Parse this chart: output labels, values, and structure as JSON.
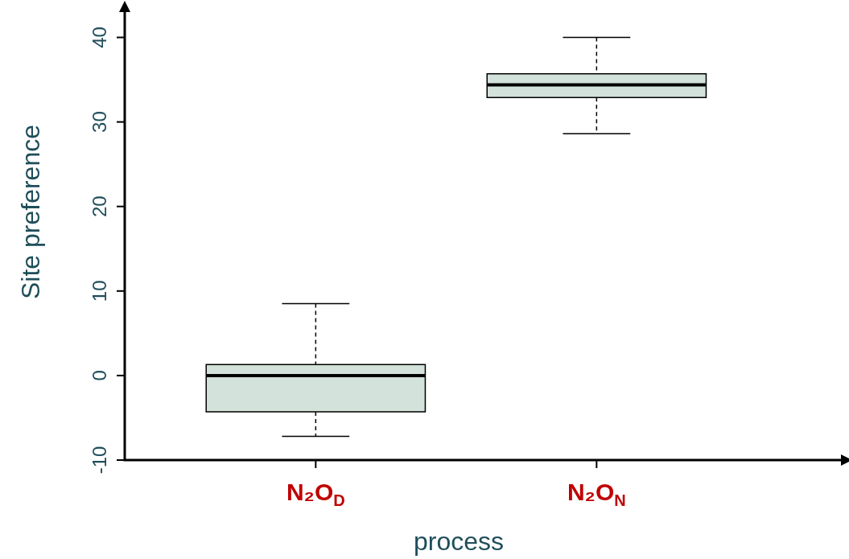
{
  "chart_data": {
    "type": "box",
    "xlabel": "process",
    "ylabel": "Site preference",
    "categories": [
      "N₂O$_{D}$",
      "N₂O$_{N}$"
    ],
    "color": "#d3e2da",
    "boxes": [
      {
        "low": -7.2,
        "q1": -4.3,
        "median": 0,
        "q3": 1.3,
        "high": 8.5
      },
      {
        "low": 28.6,
        "q1": 32.9,
        "median": 34.4,
        "q3": 35.7,
        "high": 40
      }
    ],
    "ylim": [
      -10,
      43
    ],
    "yticks": [
      -10,
      0,
      10,
      20,
      30,
      40
    ]
  }
}
